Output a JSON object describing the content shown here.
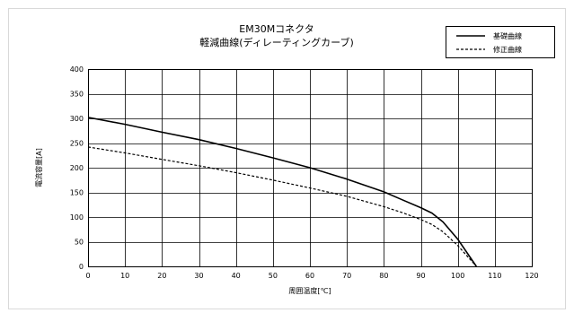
{
  "chart_data": {
    "type": "line",
    "title": "EM30Mコネクタ",
    "subtitle": "軽減曲線(ディレーティングカーブ)",
    "xlabel": "周囲温度[℃]",
    "ylabel": "電流容量[A]",
    "xlim": [
      0,
      120
    ],
    "ylim": [
      0,
      400
    ],
    "xticks": [
      0,
      10,
      20,
      30,
      40,
      50,
      60,
      70,
      80,
      90,
      100,
      110,
      120
    ],
    "yticks": [
      0,
      50,
      100,
      150,
      200,
      250,
      300,
      350,
      400
    ],
    "grid": true,
    "legend_position": "top-right",
    "series": [
      {
        "name": "基礎曲線",
        "style": "solid",
        "color": "#000000",
        "x": [
          0,
          10,
          20,
          30,
          40,
          50,
          60,
          70,
          80,
          85,
          90,
          93,
          96,
          100,
          105
        ],
        "y": [
          302,
          288,
          272,
          257,
          239,
          220,
          200,
          177,
          151,
          135,
          119,
          108,
          90,
          55,
          0
        ]
      },
      {
        "name": "修正曲線",
        "style": "dashed",
        "color": "#000000",
        "x": [
          0,
          10,
          20,
          30,
          40,
          50,
          60,
          70,
          80,
          85,
          90,
          93,
          96,
          100,
          105
        ],
        "y": [
          242,
          230,
          217,
          204,
          190,
          175,
          159,
          142,
          121,
          109,
          95,
          85,
          70,
          42,
          0
        ]
      }
    ]
  }
}
